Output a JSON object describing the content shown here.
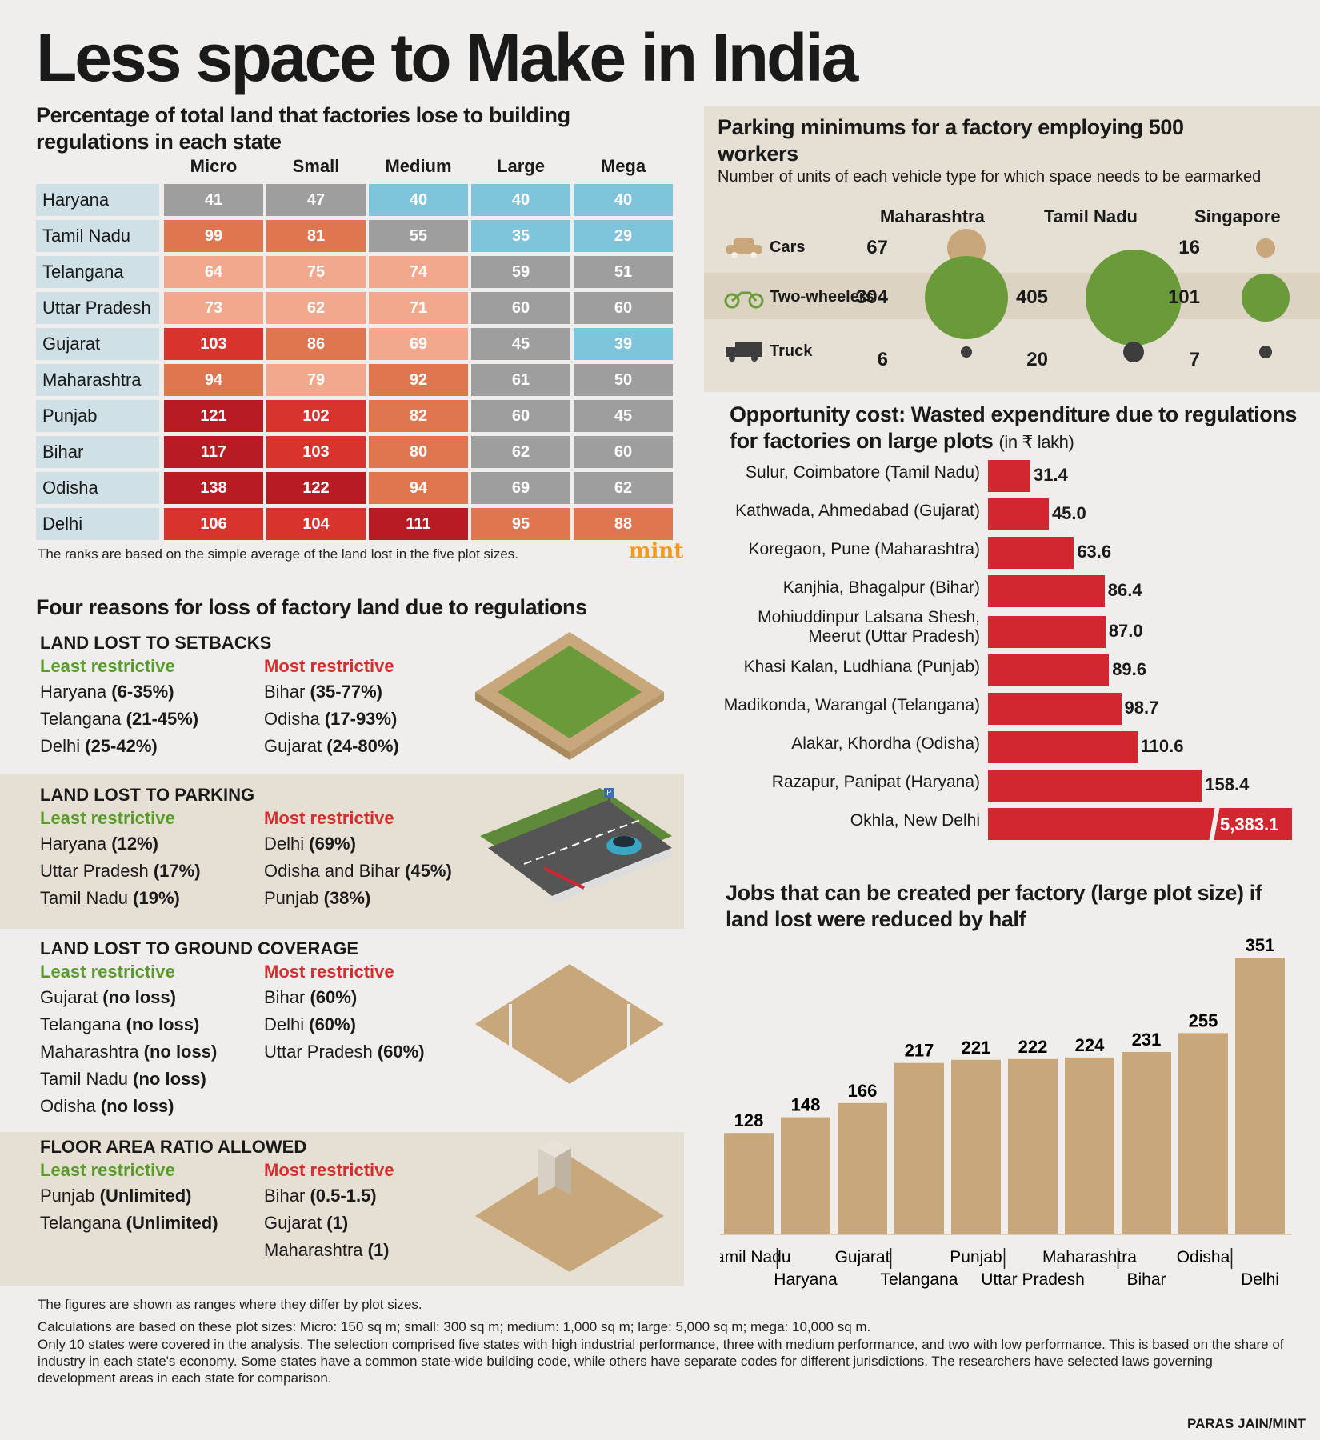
{
  "title": "Less space to Make in India",
  "land_table": {
    "heading": "Percentage of total land that factories lose to building regulations in each state",
    "columns": [
      "Micro",
      "Small",
      "Medium",
      "Large",
      "Mega"
    ],
    "rows": [
      {
        "state": "Haryana",
        "values": [
          41,
          47,
          40,
          40,
          40
        ],
        "colors": [
          "#9e9e9e",
          "#9e9e9e",
          "#7ec5dc",
          "#7ec5dc",
          "#7ec5dc"
        ]
      },
      {
        "state": "Tamil Nadu",
        "values": [
          99,
          81,
          55,
          35,
          29
        ],
        "colors": [
          "#e0764f",
          "#e0764f",
          "#9e9e9e",
          "#7ec5dc",
          "#7ec5dc"
        ]
      },
      {
        "state": "Telangana",
        "values": [
          64,
          75,
          74,
          59,
          51
        ],
        "colors": [
          "#f2a88c",
          "#f2a88c",
          "#f2a88c",
          "#9e9e9e",
          "#9e9e9e"
        ]
      },
      {
        "state": "Uttar Pradesh",
        "values": [
          73,
          62,
          71,
          60,
          60
        ],
        "colors": [
          "#f2a88c",
          "#f2a88c",
          "#f2a88c",
          "#9e9e9e",
          "#9e9e9e"
        ]
      },
      {
        "state": "Gujarat",
        "values": [
          103,
          86,
          69,
          45,
          39
        ],
        "colors": [
          "#d9332d",
          "#e0764f",
          "#f2a88c",
          "#9e9e9e",
          "#7ec5dc"
        ]
      },
      {
        "state": "Maharashtra",
        "values": [
          94,
          79,
          92,
          61,
          50
        ],
        "colors": [
          "#e0764f",
          "#f2a88c",
          "#e0764f",
          "#9e9e9e",
          "#9e9e9e"
        ]
      },
      {
        "state": "Punjab",
        "values": [
          121,
          102,
          82,
          60,
          45
        ],
        "colors": [
          "#b71c22",
          "#d9332d",
          "#e0764f",
          "#9e9e9e",
          "#9e9e9e"
        ]
      },
      {
        "state": "Bihar",
        "values": [
          117,
          103,
          80,
          62,
          60
        ],
        "colors": [
          "#b71c22",
          "#d9332d",
          "#e0764f",
          "#9e9e9e",
          "#9e9e9e"
        ]
      },
      {
        "state": "Odisha",
        "values": [
          138,
          122,
          94,
          69,
          62
        ],
        "colors": [
          "#b71c22",
          "#b71c22",
          "#e0764f",
          "#9e9e9e",
          "#9e9e9e"
        ]
      },
      {
        "state": "Delhi",
        "values": [
          106,
          104,
          111,
          95,
          88
        ],
        "colors": [
          "#d9332d",
          "#d9332d",
          "#b71c22",
          "#e0764f",
          "#e0764f"
        ]
      }
    ],
    "note": "The ranks are based on the simple average of the land lost in the five plot sizes.",
    "logo": "mint"
  },
  "reasons": {
    "heading": "Four reasons for loss of factory land due to regulations",
    "least_label": "Least restrictive",
    "most_label": "Most restrictive",
    "sections": [
      {
        "title": "LAND LOST TO SETBACKS",
        "least": [
          {
            "name": "Haryana ",
            "value": "(6-35%)"
          },
          {
            "name": "Telangana ",
            "value": "(21-45%)"
          },
          {
            "name": "Delhi ",
            "value": "(25-42%)"
          }
        ],
        "most": [
          {
            "name": "Bihar ",
            "value": "(35-77%)"
          },
          {
            "name": "Odisha ",
            "value": "(17-93%)"
          },
          {
            "name": "Gujarat ",
            "value": "(24-80%)"
          }
        ]
      },
      {
        "title": "LAND LOST TO PARKING",
        "least": [
          {
            "name": "Haryana ",
            "value": "(12%)"
          },
          {
            "name": "Uttar Pradesh ",
            "value": "(17%)"
          },
          {
            "name": "Tamil Nadu ",
            "value": "(19%)"
          }
        ],
        "most": [
          {
            "name": "Delhi ",
            "value": "(69%)"
          },
          {
            "name": "Odisha and Bihar ",
            "value": "(45%)"
          },
          {
            "name": "Punjab ",
            "value": "(38%)"
          }
        ]
      },
      {
        "title": "LAND LOST TO GROUND COVERAGE",
        "least": [
          {
            "name": "Gujarat ",
            "value": "(no loss)"
          },
          {
            "name": "Telangana ",
            "value": "(no loss)"
          },
          {
            "name": "Maharashtra ",
            "value": "(no loss)"
          },
          {
            "name": "Tamil Nadu ",
            "value": "(no loss)"
          },
          {
            "name": "Odisha ",
            "value": "(no loss)"
          }
        ],
        "most": [
          {
            "name": "Bihar ",
            "value": "(60%)"
          },
          {
            "name": "Delhi ",
            "value": "(60%)"
          },
          {
            "name": "Uttar Pradesh ",
            "value": "(60%)"
          }
        ]
      },
      {
        "title": "FLOOR AREA RATIO ALLOWED",
        "least": [
          {
            "name": "Punjab ",
            "value": "(Unlimited)"
          },
          {
            "name": "Telangana ",
            "value": "(Unlimited)"
          }
        ],
        "most": [
          {
            "name": "Bihar ",
            "value": "(0.5-1.5)"
          },
          {
            "name": "Gujarat ",
            "value": "(1)"
          },
          {
            "name": "Maharashtra ",
            "value": "(1)"
          }
        ]
      }
    ]
  },
  "parking": {
    "heading": "Parking minimums for a factory employing 500 workers",
    "subheading": "Number of units of each vehicle type for which space needs to be earmarked",
    "regions": [
      "Maharashtra",
      "Tamil Nadu",
      "Singapore"
    ],
    "vehicles": [
      "Cars",
      "Two-wheelers",
      "Truck"
    ],
    "values": {
      "Cars": [
        67,
        null,
        16
      ],
      "Two-wheelers": [
        304,
        405,
        101
      ],
      "Truck": [
        6,
        20,
        7
      ]
    },
    "colors": {
      "Cars": "#c8a77a",
      "Two-wheelers": "#6b9a3a",
      "Truck": "#3d3d3d"
    }
  },
  "opportunity": {
    "heading": "Opportunity cost: Wasted expenditure due to regulations for factories on large plots",
    "unit": "(in ₹ lakh)",
    "items": [
      {
        "label": "Sulur, Coimbatore (Tamil Nadu)",
        "value": 31.4,
        "text": "31.4"
      },
      {
        "label": "Kathwada, Ahmedabad (Gujarat)",
        "value": 45.0,
        "text": "45.0"
      },
      {
        "label": "Koregaon, Pune (Maharashtra)",
        "value": 63.6,
        "text": "63.6"
      },
      {
        "label": "Kanjhia, Bhagalpur (Bihar)",
        "value": 86.4,
        "text": "86.4"
      },
      {
        "label": "Mohiuddinpur Lalsana Shesh,",
        "label2": "Meerut (Uttar Pradesh)",
        "value": 87.0,
        "text": "87.0"
      },
      {
        "label": "Khasi Kalan, Ludhiana (Punjab)",
        "value": 89.6,
        "text": "89.6"
      },
      {
        "label": "Madikonda, Warangal (Telangana)",
        "value": 98.7,
        "text": "98.7"
      },
      {
        "label": "Alakar, Khordha (Odisha)",
        "value": 110.6,
        "text": "110.6"
      },
      {
        "label": "Razapur, Panipat (Haryana)",
        "value": 158.4,
        "text": "158.4"
      },
      {
        "label": "Okhla, New Delhi",
        "value": 5383.1,
        "text": "5,383.1"
      }
    ],
    "color": "#d22630"
  },
  "chart_data": {
    "type": "bar",
    "title": "Jobs that can be created per factory (large plot size) if land lost were reduced by half",
    "categories": [
      "Tamil Nadu",
      "Haryana",
      "Gujarat",
      "Telangana",
      "Punjab",
      "Uttar Pradesh",
      "Maharashtra",
      "Bihar",
      "Odisha",
      "Delhi"
    ],
    "values": [
      128,
      148,
      166,
      217,
      221,
      222,
      224,
      231,
      255,
      351
    ],
    "color": "#c8a77a"
  },
  "footnotes": [
    "The figures are shown as ranges where they differ by plot sizes.",
    "Calculations are based on these plot sizes: Micro: 150 sq m; small: 300 sq m; medium: 1,000 sq m; large: 5,000 sq m; mega: 10,000 sq m.",
    "Only 10 states were covered in the analysis. The selection comprised five states with high industrial performance, three with medium performance, and two with low performance. This is based on the share of industry in each state's economy. Some states have a common state-wide building code, while others have separate codes for different jurisdictions. The researchers have selected laws governing development areas in each state for comparison."
  ],
  "credit": "PARAS JAIN/MINT"
}
